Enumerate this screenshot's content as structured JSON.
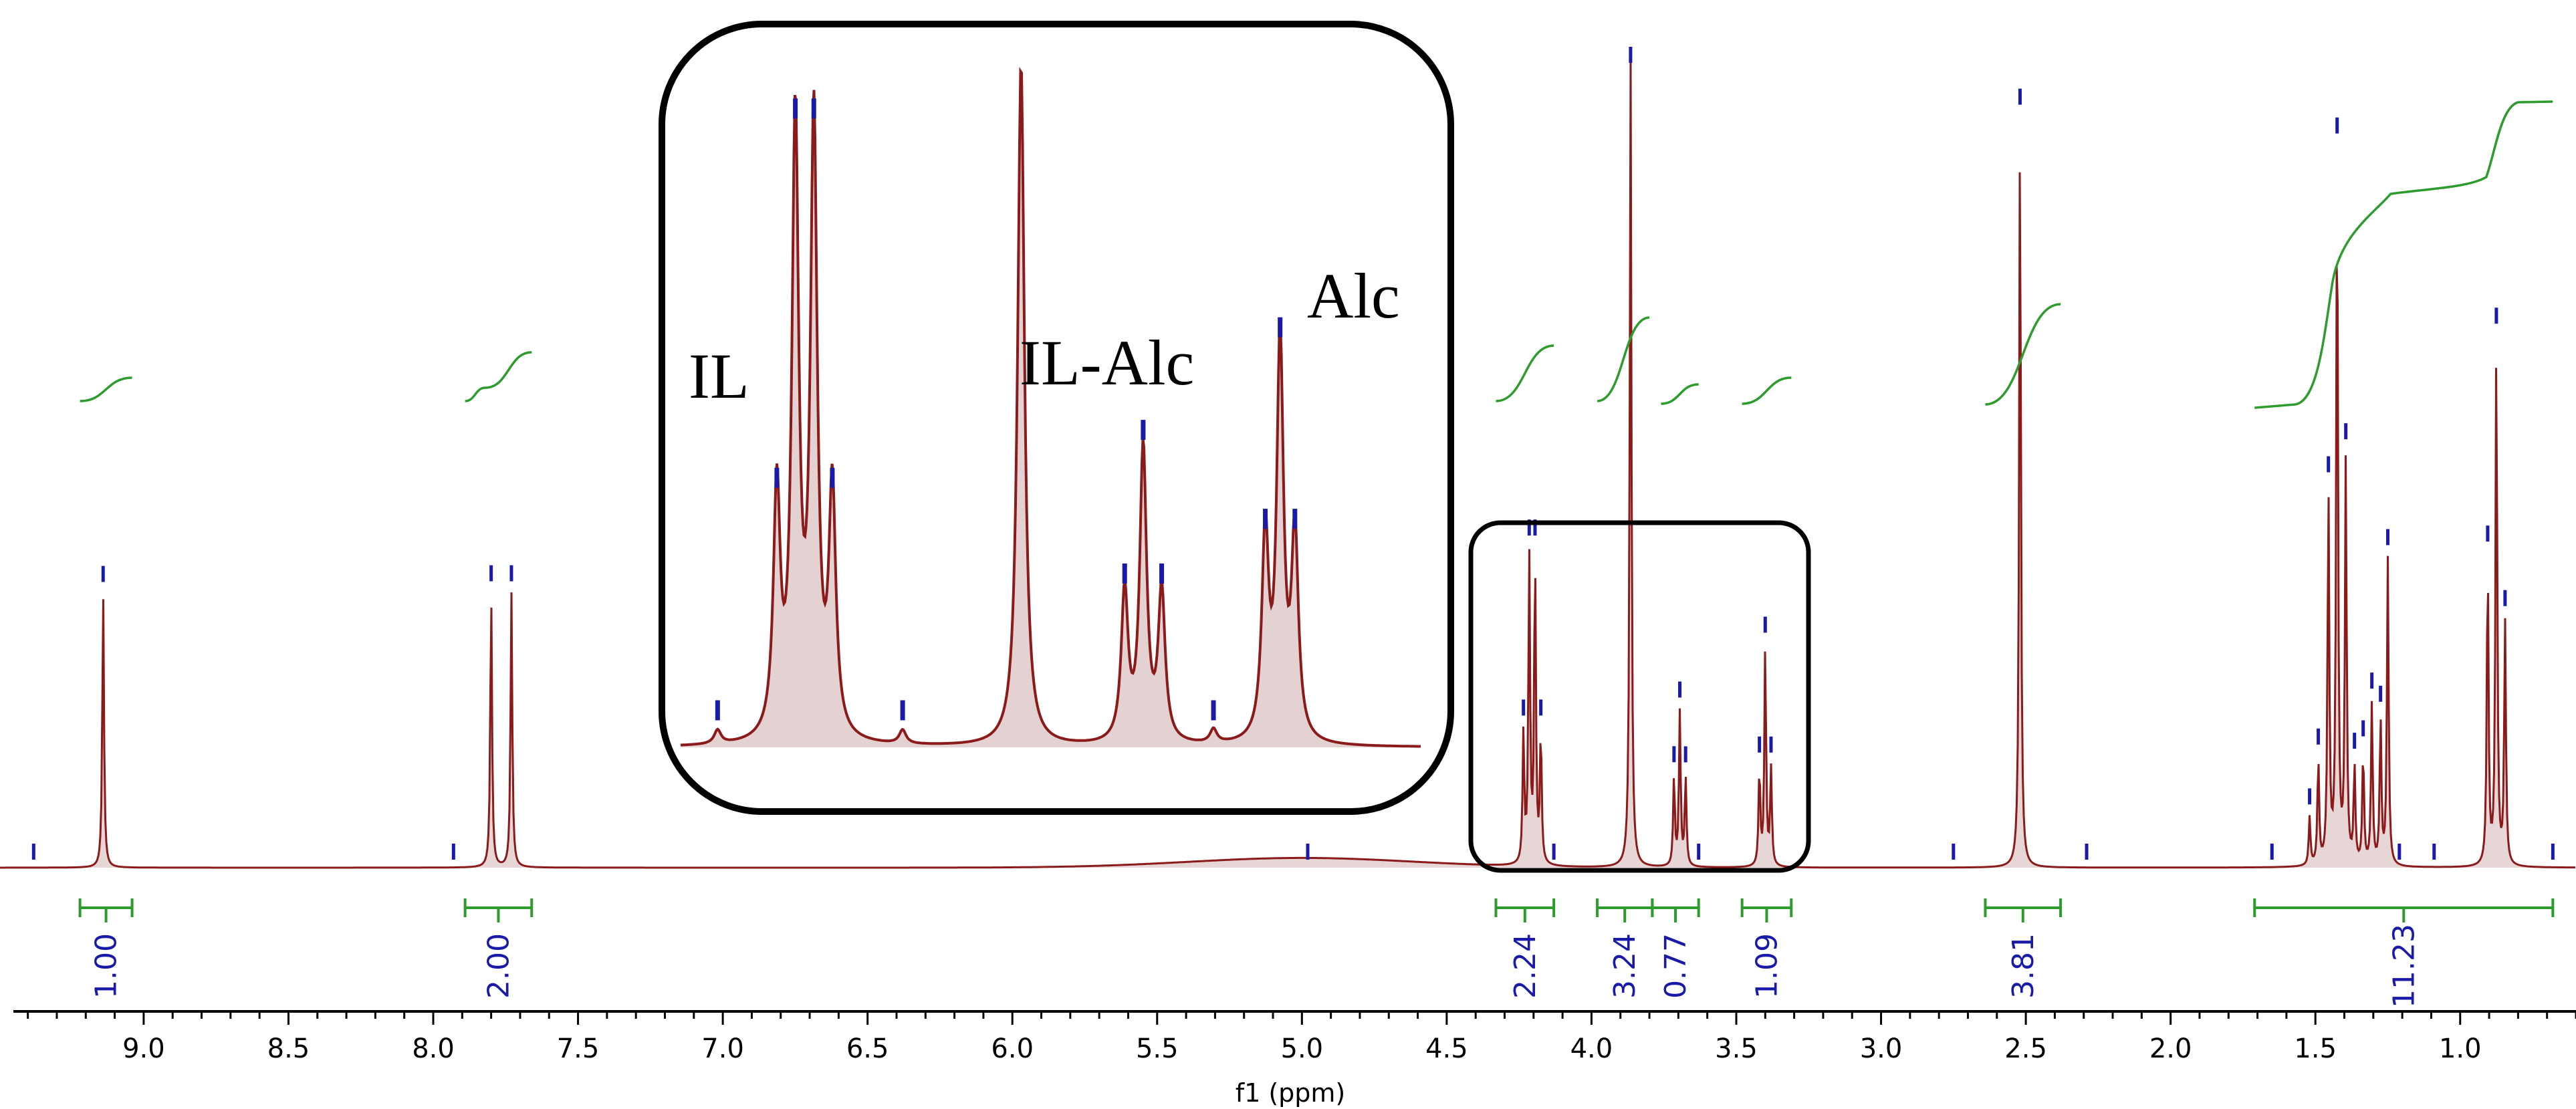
{
  "chart_data": {
    "type": "line",
    "title": "",
    "xlabel": "f1 (ppm)",
    "ylabel": "",
    "xlim": [
      9.45,
      0.6
    ],
    "x_reversed": true,
    "grid": false,
    "x_ticks": [
      "9.0",
      "8.5",
      "8.0",
      "7.5",
      "7.0",
      "6.5",
      "6.0",
      "5.5",
      "5.0",
      "4.5",
      "4.0",
      "3.5",
      "3.0",
      "2.5",
      "2.0",
      "1.5",
      "1.0"
    ],
    "series": [
      {
        "peaks": [
          {
            "ppm": 9.14,
            "height": 0.34
          },
          {
            "ppm": 7.8,
            "height": 0.34
          },
          {
            "ppm": 7.73,
            "height": 0.34
          },
          {
            "ppm": 4.235,
            "height": 0.16
          },
          {
            "ppm": 4.215,
            "height": 0.38
          },
          {
            "ppm": 4.195,
            "height": 0.38
          },
          {
            "ppm": 4.175,
            "height": 0.16
          },
          {
            "ppm": 3.865,
            "height": 1.0
          },
          {
            "ppm": 3.715,
            "height": 0.11
          },
          {
            "ppm": 3.695,
            "height": 0.19
          },
          {
            "ppm": 3.675,
            "height": 0.11
          },
          {
            "ppm": 3.42,
            "height": 0.12
          },
          {
            "ppm": 3.4,
            "height": 0.27
          },
          {
            "ppm": 3.38,
            "height": 0.12
          },
          {
            "ppm": 2.52,
            "height": 0.93
          },
          {
            "ppm": 1.52,
            "height": 0.06
          },
          {
            "ppm": 1.49,
            "height": 0.13
          },
          {
            "ppm": 1.455,
            "height": 0.46
          },
          {
            "ppm": 1.425,
            "height": 0.88
          },
          {
            "ppm": 1.395,
            "height": 0.5
          },
          {
            "ppm": 1.365,
            "height": 0.12
          },
          {
            "ppm": 1.335,
            "height": 0.14
          },
          {
            "ppm": 1.305,
            "height": 0.2
          },
          {
            "ppm": 1.275,
            "height": 0.18
          },
          {
            "ppm": 1.25,
            "height": 0.38
          },
          {
            "ppm": 0.905,
            "height": 0.38
          },
          {
            "ppm": 0.875,
            "height": 0.65
          },
          {
            "ppm": 0.845,
            "height": 0.3
          }
        ],
        "broad_hump": {
          "ppm": 5.0,
          "height": 0.012
        }
      }
    ],
    "peak_markers_ppm": [
      9.14,
      7.8,
      7.73,
      4.235,
      4.215,
      4.195,
      4.175,
      3.865,
      3.695,
      3.675,
      3.715,
      3.42,
      3.4,
      3.38,
      2.52,
      1.52,
      1.49,
      1.455,
      1.425,
      1.395,
      1.365,
      1.335,
      1.305,
      1.275,
      1.25,
      0.905,
      0.875,
      0.845
    ],
    "minor_markers_ppm": [
      9.38,
      7.93,
      4.98,
      4.13,
      3.63,
      2.75,
      2.29,
      1.65,
      1.21,
      1.09,
      0.68
    ],
    "integrals": [
      {
        "from": 9.22,
        "to": 9.04,
        "label": "1.00"
      },
      {
        "from": 7.89,
        "to": 7.66,
        "label": "2.00"
      },
      {
        "from": 4.33,
        "to": 4.13,
        "label": "2.24"
      },
      {
        "from": 3.98,
        "to": 3.79,
        "label": "3.24"
      },
      {
        "from": 3.79,
        "to": 3.63,
        "label": "0.77"
      },
      {
        "from": 3.48,
        "to": 3.31,
        "label": "1.09"
      },
      {
        "from": 2.64,
        "to": 2.38,
        "label": "3.81"
      },
      {
        "from": 1.71,
        "to": 0.68,
        "label": "11.23"
      }
    ],
    "inset": {
      "labels": [
        "IL",
        "IL-Alc",
        "Alc"
      ],
      "peaks": [
        {
          "pos": 0.05,
          "height": 0.02
        },
        {
          "pos": 0.13,
          "height": 0.36
        },
        {
          "pos": 0.155,
          "height": 0.9
        },
        {
          "pos": 0.18,
          "height": 0.9
        },
        {
          "pos": 0.205,
          "height": 0.36
        },
        {
          "pos": 0.3,
          "height": 0.02
        },
        {
          "pos": 0.46,
          "height": 1.0
        },
        {
          "pos": 0.6,
          "height": 0.22
        },
        {
          "pos": 0.625,
          "height": 0.43
        },
        {
          "pos": 0.65,
          "height": 0.22
        },
        {
          "pos": 0.72,
          "height": 0.02
        },
        {
          "pos": 0.79,
          "height": 0.3
        },
        {
          "pos": 0.81,
          "height": 0.58
        },
        {
          "pos": 0.83,
          "height": 0.3
        }
      ]
    },
    "colors": {
      "spectrum": "#8b1a1a",
      "spectrum_fill": "#c9a3a3",
      "peak_marker": "#1a1aa8",
      "integral": "#2e9b2e",
      "integral_value": "#1a1aa8",
      "box": "#000000"
    }
  }
}
